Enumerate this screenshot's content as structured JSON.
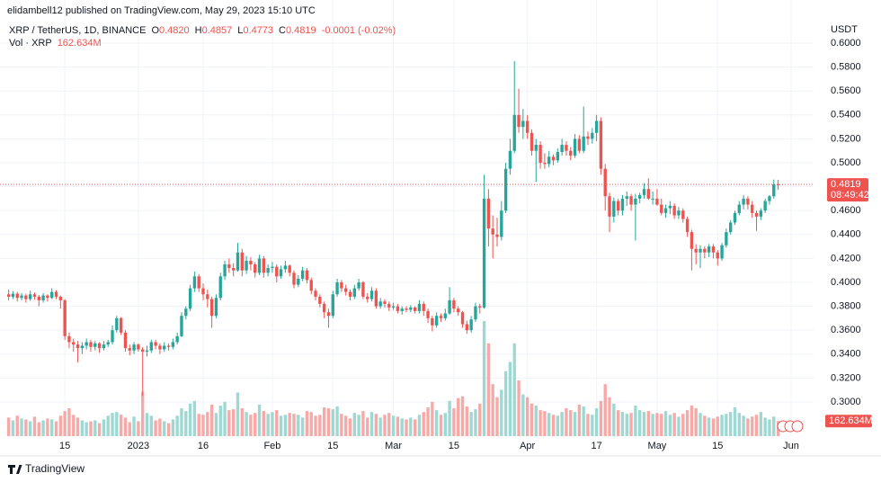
{
  "header": "elidambell12 published on TradingView.com, May 29, 2023 15:10 UTC",
  "footer": "TradingView",
  "chart_data": {
    "type": "candlestick",
    "legend": {
      "symbol": "XRP / TetherUS, 1D, BINANCE",
      "items": [
        {
          "key": "O",
          "value": "0.4820"
        },
        {
          "key": "H",
          "value": "0.4857"
        },
        {
          "key": "L",
          "value": "0.4773"
        },
        {
          "key": "C",
          "value": "0.4819"
        }
      ],
      "change": "-0.0001 (-0.02%)"
    },
    "volume_legend": "Vol · XRP",
    "volume_value": "162.634M",
    "y_unit": "USDT",
    "last_price": {
      "value": 0.4819,
      "label": "0.4819"
    },
    "countdown": "08:49:42",
    "up_color": "#26a69a",
    "down_color": "#ef5350",
    "volume_up_color": "#9ed8d2",
    "volume_down_color": "#f7a9a7",
    "grid": true,
    "xlim": [
      -2,
      186.2
    ],
    "ylim": [
      0.2714,
      0.6361
    ],
    "volume_ylim": [
      0,
      4700
    ],
    "xticks": [
      {
        "value": 13,
        "label": "15"
      },
      {
        "value": 30,
        "label": "2023"
      },
      {
        "value": 45,
        "label": "16"
      },
      {
        "value": 61,
        "label": "Feb"
      },
      {
        "value": 75,
        "label": "15"
      },
      {
        "value": 89,
        "label": "Mar"
      },
      {
        "value": 103,
        "label": "15"
      },
      {
        "value": 120,
        "label": "Apr"
      },
      {
        "value": 136,
        "label": "17"
      },
      {
        "value": 150,
        "label": "May"
      },
      {
        "value": 164,
        "label": "15"
      },
      {
        "value": 181,
        "label": "Jun"
      }
    ],
    "yticks": [
      {
        "value": 0.3,
        "label": "0.3000"
      },
      {
        "value": 0.32,
        "label": "0.3200"
      },
      {
        "value": 0.34,
        "label": "0.3400"
      },
      {
        "value": 0.36,
        "label": "0.3600"
      },
      {
        "value": 0.38,
        "label": "0.3800"
      },
      {
        "value": 0.4,
        "label": "0.4000"
      },
      {
        "value": 0.42,
        "label": "0.4200"
      },
      {
        "value": 0.44,
        "label": "0.4400"
      },
      {
        "value": 0.46,
        "label": "0.4600"
      },
      {
        "value": 0.48,
        "label": "0.4800"
      },
      {
        "value": 0.5,
        "label": "0.5000"
      },
      {
        "value": 0.52,
        "label": "0.5200"
      },
      {
        "value": 0.54,
        "label": "0.5400"
      },
      {
        "value": 0.56,
        "label": "0.5600"
      },
      {
        "value": 0.58,
        "label": "0.5800"
      },
      {
        "value": 0.6,
        "label": "0.6000"
      }
    ],
    "candles": [
      [
        0.39,
        0.394,
        0.385,
        0.388
      ],
      [
        0.388,
        0.3925,
        0.386,
        0.3905
      ],
      [
        0.3905,
        0.392,
        0.384,
        0.387
      ],
      [
        0.387,
        0.391,
        0.385,
        0.389
      ],
      [
        0.389,
        0.3905,
        0.383,
        0.386
      ],
      [
        0.386,
        0.393,
        0.3845,
        0.39
      ],
      [
        0.39,
        0.3915,
        0.3855,
        0.388
      ],
      [
        0.388,
        0.3895,
        0.38,
        0.385
      ],
      [
        0.385,
        0.391,
        0.383,
        0.389
      ],
      [
        0.389,
        0.39,
        0.384,
        0.387
      ],
      [
        0.387,
        0.395,
        0.386,
        0.392
      ],
      [
        0.392,
        0.3935,
        0.386,
        0.388
      ],
      [
        0.388,
        0.389,
        0.378,
        0.385
      ],
      [
        0.385,
        0.386,
        0.352,
        0.355
      ],
      [
        0.355,
        0.358,
        0.345,
        0.35
      ],
      [
        0.35,
        0.353,
        0.342,
        0.348
      ],
      [
        0.348,
        0.351,
        0.333,
        0.345
      ],
      [
        0.345,
        0.35,
        0.34,
        0.347
      ],
      [
        0.347,
        0.353,
        0.344,
        0.35
      ],
      [
        0.35,
        0.352,
        0.342,
        0.346
      ],
      [
        0.346,
        0.351,
        0.343,
        0.349
      ],
      [
        0.349,
        0.35,
        0.341,
        0.345
      ],
      [
        0.345,
        0.351,
        0.343,
        0.348
      ],
      [
        0.348,
        0.352,
        0.346,
        0.35
      ],
      [
        0.35,
        0.364,
        0.348,
        0.36
      ],
      [
        0.36,
        0.372,
        0.358,
        0.37
      ],
      [
        0.37,
        0.371,
        0.356,
        0.358
      ],
      [
        0.358,
        0.36,
        0.342,
        0.345
      ],
      [
        0.345,
        0.348,
        0.339,
        0.343
      ],
      [
        0.343,
        0.35,
        0.34,
        0.348
      ],
      [
        0.348,
        0.349,
        0.342,
        0.344
      ],
      [
        0.344,
        0.346,
        0.305,
        0.342
      ],
      [
        0.342,
        0.347,
        0.338,
        0.343
      ],
      [
        0.343,
        0.352,
        0.341,
        0.35
      ],
      [
        0.35,
        0.352,
        0.344,
        0.347
      ],
      [
        0.347,
        0.349,
        0.34,
        0.344
      ],
      [
        0.344,
        0.35,
        0.342,
        0.347
      ],
      [
        0.347,
        0.349,
        0.343,
        0.346
      ],
      [
        0.346,
        0.353,
        0.344,
        0.35
      ],
      [
        0.35,
        0.358,
        0.348,
        0.355
      ],
      [
        0.355,
        0.375,
        0.354,
        0.372
      ],
      [
        0.372,
        0.38,
        0.369,
        0.378
      ],
      [
        0.378,
        0.398,
        0.376,
        0.395
      ],
      [
        0.395,
        0.409,
        0.392,
        0.405
      ],
      [
        0.405,
        0.407,
        0.392,
        0.395
      ],
      [
        0.395,
        0.399,
        0.385,
        0.39
      ],
      [
        0.39,
        0.394,
        0.379,
        0.386
      ],
      [
        0.386,
        0.388,
        0.362,
        0.372
      ],
      [
        0.372,
        0.39,
        0.37,
        0.387
      ],
      [
        0.387,
        0.408,
        0.385,
        0.405
      ],
      [
        0.405,
        0.418,
        0.402,
        0.415
      ],
      [
        0.415,
        0.42,
        0.408,
        0.412
      ],
      [
        0.412,
        0.416,
        0.405,
        0.41
      ],
      [
        0.41,
        0.433,
        0.409,
        0.425
      ],
      [
        0.425,
        0.428,
        0.405,
        0.41
      ],
      [
        0.41,
        0.422,
        0.407,
        0.418
      ],
      [
        0.418,
        0.421,
        0.41,
        0.415
      ],
      [
        0.415,
        0.417,
        0.404,
        0.408
      ],
      [
        0.408,
        0.423,
        0.406,
        0.42
      ],
      [
        0.42,
        0.422,
        0.404,
        0.408
      ],
      [
        0.408,
        0.415,
        0.405,
        0.412
      ],
      [
        0.412,
        0.417,
        0.408,
        0.413
      ],
      [
        0.413,
        0.415,
        0.4,
        0.405
      ],
      [
        0.405,
        0.414,
        0.403,
        0.411
      ],
      [
        0.411,
        0.418,
        0.408,
        0.414
      ],
      [
        0.414,
        0.415,
        0.405,
        0.408
      ],
      [
        0.408,
        0.41,
        0.395,
        0.398
      ],
      [
        0.398,
        0.406,
        0.396,
        0.403
      ],
      [
        0.403,
        0.413,
        0.401,
        0.41
      ],
      [
        0.41,
        0.412,
        0.399,
        0.402
      ],
      [
        0.402,
        0.404,
        0.39,
        0.393
      ],
      [
        0.393,
        0.395,
        0.385,
        0.388
      ],
      [
        0.388,
        0.39,
        0.379,
        0.382
      ],
      [
        0.382,
        0.384,
        0.37,
        0.375
      ],
      [
        0.375,
        0.378,
        0.362,
        0.372
      ],
      [
        0.372,
        0.393,
        0.37,
        0.39
      ],
      [
        0.39,
        0.403,
        0.388,
        0.4
      ],
      [
        0.4,
        0.402,
        0.392,
        0.395
      ],
      [
        0.395,
        0.398,
        0.389,
        0.392
      ],
      [
        0.392,
        0.394,
        0.385,
        0.388
      ],
      [
        0.388,
        0.398,
        0.386,
        0.395
      ],
      [
        0.395,
        0.403,
        0.393,
        0.4
      ],
      [
        0.4,
        0.401,
        0.386,
        0.388
      ],
      [
        0.388,
        0.391,
        0.383,
        0.386
      ],
      [
        0.386,
        0.396,
        0.384,
        0.393
      ],
      [
        0.393,
        0.395,
        0.378,
        0.38
      ],
      [
        0.38,
        0.387,
        0.378,
        0.384
      ],
      [
        0.384,
        0.386,
        0.379,
        0.382
      ],
      [
        0.382,
        0.384,
        0.376,
        0.379
      ],
      [
        0.379,
        0.383,
        0.377,
        0.38
      ],
      [
        0.38,
        0.382,
        0.374,
        0.376
      ],
      [
        0.376,
        0.38,
        0.373,
        0.378
      ],
      [
        0.378,
        0.38,
        0.375,
        0.377
      ],
      [
        0.377,
        0.381,
        0.375,
        0.379
      ],
      [
        0.379,
        0.38,
        0.374,
        0.376
      ],
      [
        0.376,
        0.385,
        0.374,
        0.382
      ],
      [
        0.382,
        0.384,
        0.372,
        0.376
      ],
      [
        0.376,
        0.378,
        0.366,
        0.37
      ],
      [
        0.37,
        0.372,
        0.359,
        0.364
      ],
      [
        0.364,
        0.375,
        0.362,
        0.372
      ],
      [
        0.372,
        0.374,
        0.367,
        0.37
      ],
      [
        0.37,
        0.378,
        0.368,
        0.374
      ],
      [
        0.374,
        0.396,
        0.373,
        0.385
      ],
      [
        0.385,
        0.387,
        0.375,
        0.378
      ],
      [
        0.378,
        0.38,
        0.372,
        0.375
      ],
      [
        0.375,
        0.376,
        0.362,
        0.365
      ],
      [
        0.365,
        0.368,
        0.357,
        0.36
      ],
      [
        0.36,
        0.372,
        0.358,
        0.369
      ],
      [
        0.369,
        0.383,
        0.367,
        0.38
      ],
      [
        0.38,
        0.382,
        0.374,
        0.379
      ],
      [
        0.379,
        0.49,
        0.378,
        0.47
      ],
      [
        0.47,
        0.478,
        0.43,
        0.445
      ],
      [
        0.445,
        0.456,
        0.42,
        0.44
      ],
      [
        0.44,
        0.454,
        0.43,
        0.438
      ],
      [
        0.438,
        0.468,
        0.435,
        0.46
      ],
      [
        0.46,
        0.5,
        0.458,
        0.495
      ],
      [
        0.495,
        0.52,
        0.49,
        0.51
      ],
      [
        0.51,
        0.585,
        0.508,
        0.54
      ],
      [
        0.54,
        0.562,
        0.525,
        0.53
      ],
      [
        0.53,
        0.545,
        0.52,
        0.535
      ],
      [
        0.535,
        0.54,
        0.52,
        0.525
      ],
      [
        0.525,
        0.528,
        0.506,
        0.51
      ],
      [
        0.51,
        0.52,
        0.484,
        0.515
      ],
      [
        0.515,
        0.518,
        0.495,
        0.5
      ],
      [
        0.5,
        0.508,
        0.495,
        0.499
      ],
      [
        0.499,
        0.51,
        0.496,
        0.505
      ],
      [
        0.505,
        0.507,
        0.498,
        0.502
      ],
      [
        0.502,
        0.512,
        0.5,
        0.509
      ],
      [
        0.509,
        0.52,
        0.506,
        0.515
      ],
      [
        0.515,
        0.518,
        0.506,
        0.51
      ],
      [
        0.51,
        0.513,
        0.502,
        0.506
      ],
      [
        0.506,
        0.524,
        0.504,
        0.52
      ],
      [
        0.52,
        0.523,
        0.508,
        0.51
      ],
      [
        0.51,
        0.547,
        0.508,
        0.522
      ],
      [
        0.522,
        0.526,
        0.515,
        0.52
      ],
      [
        0.52,
        0.529,
        0.516,
        0.525
      ],
      [
        0.525,
        0.54,
        0.518,
        0.535
      ],
      [
        0.535,
        0.538,
        0.49,
        0.495
      ],
      [
        0.495,
        0.499,
        0.46,
        0.472
      ],
      [
        0.472,
        0.475,
        0.442,
        0.455
      ],
      [
        0.455,
        0.471,
        0.45,
        0.468
      ],
      [
        0.468,
        0.47,
        0.456,
        0.46
      ],
      [
        0.46,
        0.473,
        0.456,
        0.47
      ],
      [
        0.47,
        0.476,
        0.464,
        0.472
      ],
      [
        0.472,
        0.474,
        0.46,
        0.465
      ],
      [
        0.465,
        0.474,
        0.435,
        0.47
      ],
      [
        0.47,
        0.475,
        0.466,
        0.473
      ],
      [
        0.473,
        0.483,
        0.47,
        0.478
      ],
      [
        0.478,
        0.487,
        0.469,
        0.47
      ],
      [
        0.47,
        0.476,
        0.465,
        0.47
      ],
      [
        0.47,
        0.478,
        0.464,
        0.465
      ],
      [
        0.465,
        0.47,
        0.456,
        0.458
      ],
      [
        0.458,
        0.465,
        0.454,
        0.462
      ],
      [
        0.462,
        0.468,
        0.457,
        0.464
      ],
      [
        0.464,
        0.466,
        0.453,
        0.456
      ],
      [
        0.456,
        0.463,
        0.453,
        0.46
      ],
      [
        0.46,
        0.462,
        0.45,
        0.453
      ],
      [
        0.453,
        0.455,
        0.438,
        0.442
      ],
      [
        0.442,
        0.444,
        0.41,
        0.428
      ],
      [
        0.428,
        0.432,
        0.415,
        0.425
      ],
      [
        0.425,
        0.431,
        0.412,
        0.428
      ],
      [
        0.428,
        0.43,
        0.42,
        0.425
      ],
      [
        0.425,
        0.432,
        0.421,
        0.43
      ],
      [
        0.43,
        0.432,
        0.42,
        0.425
      ],
      [
        0.425,
        0.427,
        0.414,
        0.42
      ],
      [
        0.42,
        0.433,
        0.418,
        0.431
      ],
      [
        0.431,
        0.445,
        0.429,
        0.442
      ],
      [
        0.442,
        0.452,
        0.44,
        0.45
      ],
      [
        0.45,
        0.46,
        0.448,
        0.458
      ],
      [
        0.458,
        0.468,
        0.456,
        0.465
      ],
      [
        0.465,
        0.473,
        0.461,
        0.47
      ],
      [
        0.47,
        0.472,
        0.461,
        0.465
      ],
      [
        0.465,
        0.468,
        0.454,
        0.458
      ],
      [
        0.458,
        0.46,
        0.443,
        0.455
      ],
      [
        0.455,
        0.462,
        0.452,
        0.46
      ],
      [
        0.46,
        0.47,
        0.458,
        0.468
      ],
      [
        0.468,
        0.473,
        0.465,
        0.472
      ],
      [
        0.472,
        0.486,
        0.47,
        0.482
      ],
      [
        0.482,
        0.4857,
        0.4773,
        0.4819
      ]
    ],
    "volume": [
      200,
      170,
      220,
      190,
      180,
      160,
      210,
      150,
      170,
      190,
      180,
      160,
      220,
      270,
      300,
      230,
      200,
      170,
      150,
      160,
      170,
      140,
      180,
      220,
      250,
      260,
      230,
      200,
      150,
      210,
      160,
      480,
      250,
      220,
      170,
      190,
      160,
      140,
      180,
      220,
      300,
      270,
      350,
      380,
      240,
      230,
      260,
      340,
      250,
      330,
      370,
      280,
      290,
      470,
      300,
      260,
      230,
      250,
      340,
      270,
      240,
      260,
      280,
      220,
      230,
      250,
      240,
      230,
      200,
      270,
      260,
      220,
      230,
      310,
      300,
      290,
      320,
      240,
      220,
      190,
      250,
      230,
      270,
      200,
      260,
      240,
      200,
      230,
      250,
      220,
      210,
      190,
      180,
      200,
      180,
      230,
      260,
      310,
      370,
      280,
      230,
      250,
      380,
      300,
      410,
      430,
      320,
      260,
      290,
      350,
      1240,
      1000,
      560,
      420,
      500,
      700,
      800,
      1000,
      600,
      450,
      420,
      350,
      330,
      280,
      270,
      250,
      230,
      220,
      260,
      300,
      280,
      260,
      340,
      320,
      240,
      230,
      300,
      380,
      560,
      420,
      350,
      280,
      260,
      240,
      250,
      330,
      280,
      260,
      270,
      240,
      250,
      240,
      270,
      230,
      250,
      210,
      240,
      280,
      330,
      300,
      250,
      220,
      200,
      190,
      210,
      230,
      240,
      260,
      310,
      250,
      220,
      190,
      210,
      230,
      260,
      200,
      180,
      210,
      162.634
    ]
  }
}
